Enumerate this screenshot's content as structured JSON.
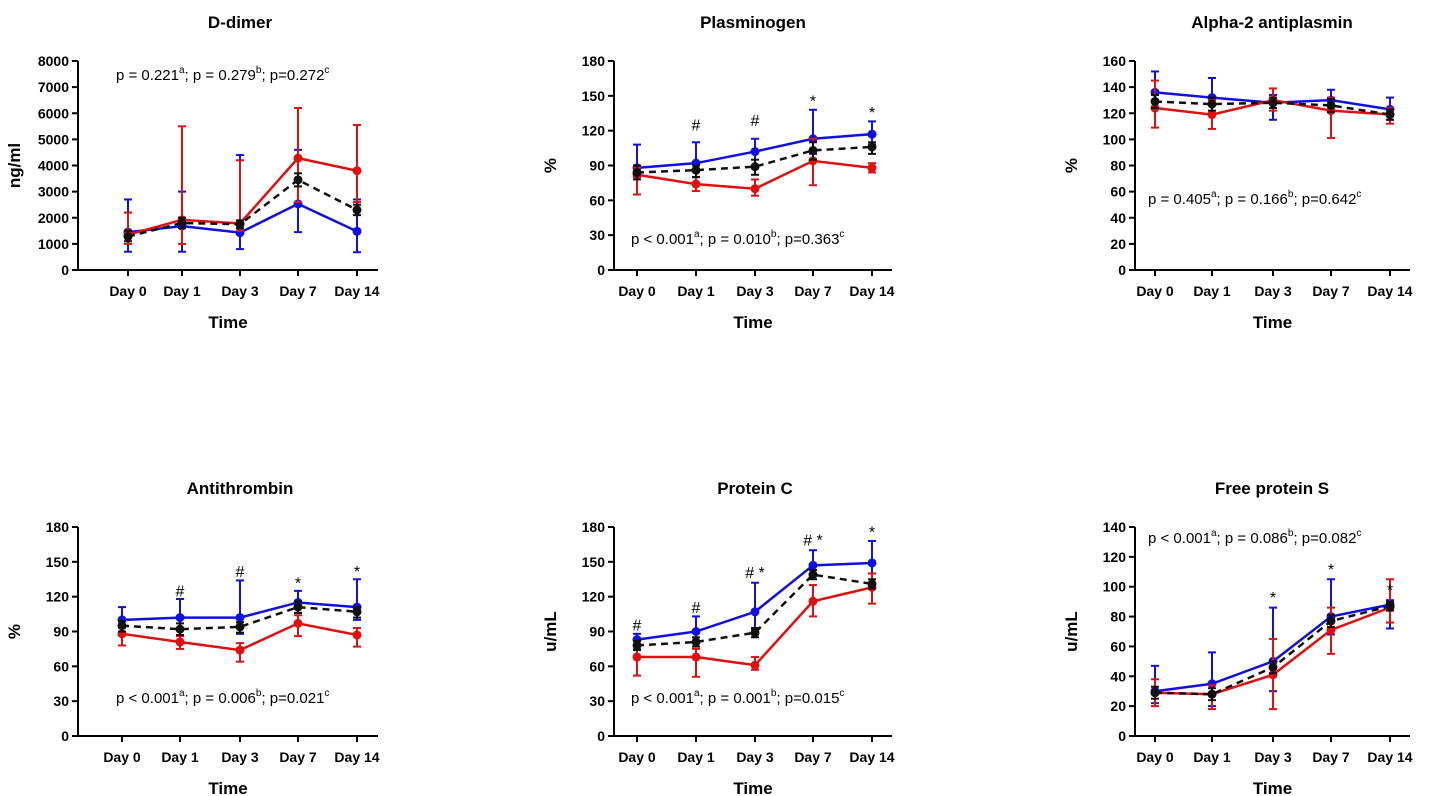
{
  "chart_data": [
    {
      "type": "line",
      "title": "D-dimer",
      "xlabel": "Time",
      "ylabel": "ng/ml",
      "categories": [
        "Day 0",
        "Day 1",
        "Day 3",
        "Day 7",
        "Day 14"
      ],
      "ylim": [
        0,
        8000
      ],
      "yticks": [
        0,
        1000,
        2000,
        3000,
        4000,
        5000,
        6000,
        7000,
        8000
      ],
      "series": [
        {
          "color": "#1010e0",
          "style": "solid",
          "values": [
            1450,
            1680,
            1430,
            2530,
            1480
          ],
          "err_up": [
            2700,
            3000,
            4400,
            4600,
            2700
          ],
          "err_down": [
            700,
            700,
            800,
            1450,
            680
          ]
        },
        {
          "color": "#e01010",
          "style": "solid",
          "values": [
            1350,
            1920,
            1780,
            4280,
            3800
          ],
          "err_up": [
            2200,
            5500,
            4200,
            6200,
            5550
          ],
          "err_down": [
            1000,
            1000,
            1500,
            2600,
            2600
          ]
        },
        {
          "color": "#111111",
          "style": "dashed",
          "values": [
            1280,
            1800,
            1750,
            3450,
            2300
          ],
          "err_up": [
            1500,
            2000,
            1900,
            3700,
            2500
          ],
          "err_down": [
            1100,
            1600,
            1600,
            3200,
            2100
          ]
        }
      ],
      "pvalues": [
        {
          "text": "p = 0.221",
          "sup": "a",
          "sep": "; "
        },
        {
          "text": "p = 0.279",
          "sup": "b",
          "sep": "; "
        },
        {
          "text": "p=0.272",
          "sup": "c",
          "sep": ""
        }
      ],
      "markers": []
    },
    {
      "type": "line",
      "title": "Plasminogen",
      "xlabel": "Time",
      "ylabel": "%",
      "categories": [
        "Day 0",
        "Day 1",
        "Day 3",
        "Day 7",
        "Day 14"
      ],
      "ylim": [
        0,
        180
      ],
      "yticks": [
        0,
        30,
        60,
        90,
        120,
        150,
        180
      ],
      "series": [
        {
          "color": "#1010e0",
          "style": "solid",
          "values": [
            88,
            92,
            102,
            113,
            117
          ],
          "err_up": [
            108,
            110,
            113,
            138,
            128
          ],
          "err_down": [
            80,
            80,
            90,
            100,
            108
          ]
        },
        {
          "color": "#e01010",
          "style": "solid",
          "values": [
            82,
            74,
            70,
            94,
            88
          ],
          "err_up": [
            88,
            80,
            78,
            113,
            92
          ],
          "err_down": [
            65,
            68,
            64,
            73,
            84
          ]
        },
        {
          "color": "#111111",
          "style": "dashed",
          "values": [
            84,
            86,
            89,
            103,
            106
          ],
          "err_up": [
            90,
            90,
            95,
            110,
            110
          ],
          "err_down": [
            78,
            80,
            82,
            95,
            100
          ]
        }
      ],
      "pvalues": [
        {
          "text": "p < 0.001",
          "sup": "a",
          "sep": "; "
        },
        {
          "text": "p = 0.010",
          "sup": "b",
          "sep": "; "
        },
        {
          "text": "p=0.363",
          "sup": "c",
          "sep": ""
        }
      ],
      "markers": [
        {
          "category": "Day 1",
          "y": 120,
          "text": "#"
        },
        {
          "category": "Day 3",
          "y": 124,
          "text": "#"
        },
        {
          "category": "Day 7",
          "y": 141,
          "text": "*"
        },
        {
          "category": "Day 14",
          "y": 131,
          "text": "*"
        }
      ]
    },
    {
      "type": "line",
      "title": "Alpha-2 antiplasmin",
      "xlabel": "Time",
      "ylabel": "%",
      "categories": [
        "Day 0",
        "Day 1",
        "Day 3",
        "Day 7",
        "Day 14"
      ],
      "ylim": [
        0,
        160
      ],
      "yticks": [
        0,
        20,
        40,
        60,
        80,
        100,
        120,
        140,
        160
      ],
      "series": [
        {
          "color": "#1010e0",
          "style": "solid",
          "values": [
            136,
            132,
            128,
            130,
            123
          ],
          "err_up": [
            152,
            147,
            134,
            138,
            132
          ],
          "err_down": [
            125,
            120,
            115,
            122,
            115
          ]
        },
        {
          "color": "#e01010",
          "style": "solid",
          "values": [
            124,
            119,
            130,
            122,
            119
          ],
          "err_up": [
            145,
            130,
            139,
            132,
            124
          ],
          "err_down": [
            109,
            108,
            122,
            101,
            112
          ]
        },
        {
          "color": "#111111",
          "style": "dashed",
          "values": [
            129,
            127,
            128,
            126,
            119
          ],
          "err_up": [
            134,
            132,
            132,
            131,
            123
          ],
          "err_down": [
            124,
            122,
            124,
            121,
            115
          ]
        }
      ],
      "pvalues": [
        {
          "text": "p = 0.405",
          "sup": "a",
          "sep": "; "
        },
        {
          "text": "p = 0.166",
          "sup": "b",
          "sep": "; "
        },
        {
          "text": "p=0.642",
          "sup": "c",
          "sep": ""
        }
      ],
      "markers": []
    },
    {
      "type": "line",
      "title": "Antithrombin",
      "xlabel": "Time",
      "ylabel": "%",
      "categories": [
        "Day 0",
        "Day 1",
        "Day 3",
        "Day 7",
        "Day 14"
      ],
      "ylim": [
        0,
        180
      ],
      "yticks": [
        0,
        30,
        60,
        90,
        120,
        150,
        180
      ],
      "series": [
        {
          "color": "#1010e0",
          "style": "solid",
          "values": [
            100,
            102,
            102,
            115,
            111
          ],
          "err_up": [
            111,
            118,
            134,
            125,
            135
          ],
          "err_down": [
            94,
            92,
            88,
            106,
            100
          ]
        },
        {
          "color": "#e01010",
          "style": "solid",
          "values": [
            88,
            81,
            74,
            97,
            87
          ],
          "err_up": [
            93,
            86,
            80,
            104,
            93
          ],
          "err_down": [
            78,
            75,
            64,
            86,
            77
          ]
        },
        {
          "color": "#111111",
          "style": "dashed",
          "values": [
            95,
            92,
            94,
            111,
            107
          ],
          "err_up": [
            99,
            97,
            98,
            116,
            111
          ],
          "err_down": [
            90,
            87,
            89,
            106,
            102
          ]
        }
      ],
      "pvalues": [
        {
          "text": "p < 0.001",
          "sup": "a",
          "sep": "; "
        },
        {
          "text": "p = 0.006",
          "sup": "b",
          "sep": "; "
        },
        {
          "text": "p=0.021",
          "sup": "c",
          "sep": ""
        }
      ],
      "markers": [
        {
          "category": "Day 1",
          "y": 120,
          "text": "#"
        },
        {
          "category": "Day 3",
          "y": 137,
          "text": "#"
        },
        {
          "category": "Day 7",
          "y": 127,
          "text": "*"
        },
        {
          "category": "Day 14",
          "y": 137,
          "text": "*"
        }
      ]
    },
    {
      "type": "line",
      "title": "Protein C",
      "xlabel": "Time",
      "ylabel": "u/mL",
      "categories": [
        "Day 0",
        "Day 1",
        "Day 3",
        "Day 7",
        "Day 14"
      ],
      "ylim": [
        0,
        180
      ],
      "yticks": [
        0,
        30,
        60,
        90,
        120,
        150,
        180
      ],
      "series": [
        {
          "color": "#1010e0",
          "style": "solid",
          "values": [
            83,
            90,
            107,
            147,
            149
          ],
          "err_up": [
            88,
            103,
            132,
            160,
            168
          ],
          "err_down": [
            78,
            82,
            92,
            140,
            140
          ]
        },
        {
          "color": "#e01010",
          "style": "solid",
          "values": [
            68,
            68,
            61,
            116,
            128
          ],
          "err_up": [
            75,
            75,
            68,
            130,
            140
          ],
          "err_down": [
            52,
            51,
            57,
            103,
            114
          ]
        },
        {
          "color": "#111111",
          "style": "dashed",
          "values": [
            78,
            81,
            89,
            139,
            131
          ],
          "err_up": [
            82,
            85,
            93,
            143,
            135
          ],
          "err_down": [
            74,
            77,
            85,
            135,
            127
          ]
        }
      ],
      "pvalues": [
        {
          "text": "p < 0.001",
          "sup": "a",
          "sep": "; "
        },
        {
          "text": "p = 0.001",
          "sup": "b",
          "sep": "; "
        },
        {
          "text": "p=0.015",
          "sup": "c",
          "sep": ""
        }
      ],
      "markers": [
        {
          "category": "Day 0",
          "y": 91,
          "text": "#"
        },
        {
          "category": "Day 1",
          "y": 106,
          "text": "#"
        },
        {
          "category": "Day 3",
          "y": 136,
          "text": "# *"
        },
        {
          "category": "Day 7",
          "y": 164,
          "text": "# *"
        },
        {
          "category": "Day 14",
          "y": 171,
          "text": "*"
        }
      ]
    },
    {
      "type": "line",
      "title": "Free protein S",
      "xlabel": "Time",
      "ylabel": "u/mL",
      "categories": [
        "Day 0",
        "Day 1",
        "Day 3",
        "Day 7",
        "Day 14"
      ],
      "ylim": [
        0,
        140
      ],
      "yticks": [
        0,
        20,
        40,
        60,
        80,
        100,
        120,
        140
      ],
      "series": [
        {
          "color": "#1010e0",
          "style": "solid",
          "values": [
            30,
            35,
            50,
            80,
            88
          ],
          "err_up": [
            47,
            56,
            86,
            105,
            91
          ],
          "err_down": [
            22,
            20,
            30,
            68,
            72
          ]
        },
        {
          "color": "#e01010",
          "style": "solid",
          "values": [
            29,
            28,
            41,
            71,
            86
          ],
          "err_up": [
            38,
            34,
            65,
            86,
            105
          ],
          "err_down": [
            20,
            18,
            18,
            55,
            76
          ]
        },
        {
          "color": "#111111",
          "style": "dashed",
          "values": [
            29,
            28,
            46,
            77,
            87
          ],
          "err_up": [
            33,
            32,
            50,
            81,
            90
          ],
          "err_down": [
            25,
            24,
            42,
            73,
            84
          ]
        }
      ],
      "pvalues": [
        {
          "text": "p < 0.001",
          "sup": "a",
          "sep": "; "
        },
        {
          "text": "p = 0.086",
          "sup": "b",
          "sep": "; "
        },
        {
          "text": "p=0.082",
          "sup": "c",
          "sep": ""
        }
      ],
      "markers": [
        {
          "category": "Day 3",
          "y": 89,
          "text": "*"
        },
        {
          "category": "Day 7",
          "y": 108,
          "text": "*"
        },
        {
          "category": "Day 14",
          "y": 94,
          "text": "*"
        }
      ]
    }
  ]
}
